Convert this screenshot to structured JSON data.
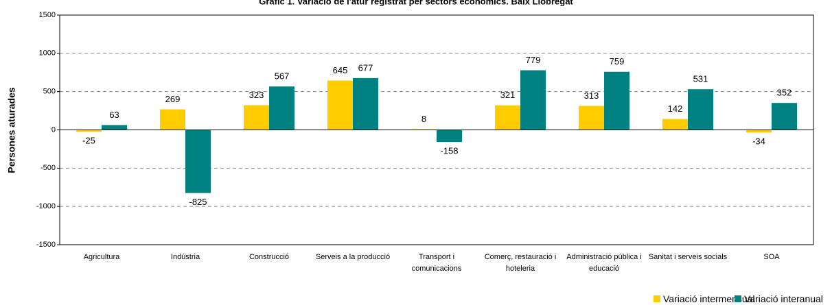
{
  "chart_data": {
    "type": "bar",
    "title": "Gràfic 1. Variació de l'atur registrat per sectors econòmics. Baix Llobregat",
    "y_label": "Persones aturades",
    "categories": [
      "Agricultura",
      "Indústria",
      "Construcció",
      "Serveis a la producció",
      "Transport i comunicacions",
      "Comerç, restauració i hoteleria",
      "Administració pública i educació",
      "Sanitat i serveis socials",
      "SOA"
    ],
    "series": [
      {
        "name": "Variació intermensual",
        "color": "#ffcc00",
        "values": [
          -25,
          269,
          323,
          645,
          8,
          321,
          313,
          142,
          -34
        ]
      },
      {
        "name": "Variació interanual",
        "color": "#008080",
        "values": [
          63,
          -825,
          567,
          677,
          -158,
          779,
          759,
          531,
          352
        ]
      }
    ],
    "ylim": [
      -1500,
      1500
    ],
    "yticks": [
      -1500,
      -1000,
      -500,
      0,
      500,
      1000,
      1500
    ],
    "grid": true
  }
}
